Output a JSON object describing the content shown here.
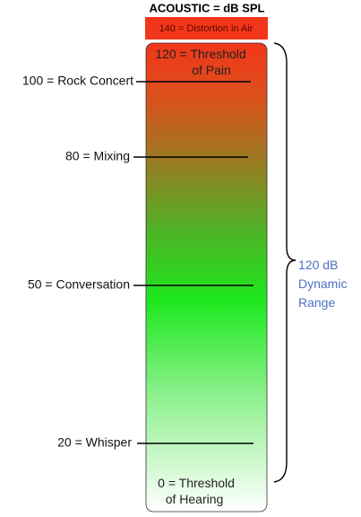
{
  "header": {
    "title": "ACOUSTIC = dB SPL"
  },
  "top_box": {
    "label": "140 = Distortion in Air"
  },
  "bar": {
    "top_label": [
      "120 = Threshold",
      "of Pain"
    ],
    "bottom_label": [
      "0 = Threshold",
      "of Hearing"
    ]
  },
  "levels": [
    {
      "label": "100 = Rock Concert"
    },
    {
      "label": "80 = Mixing"
    },
    {
      "label": "50 = Conversation"
    },
    {
      "label": "20 = Whisper"
    }
  ],
  "range": {
    "label": [
      "120 dB",
      "Dynamic",
      "Range"
    ]
  }
}
